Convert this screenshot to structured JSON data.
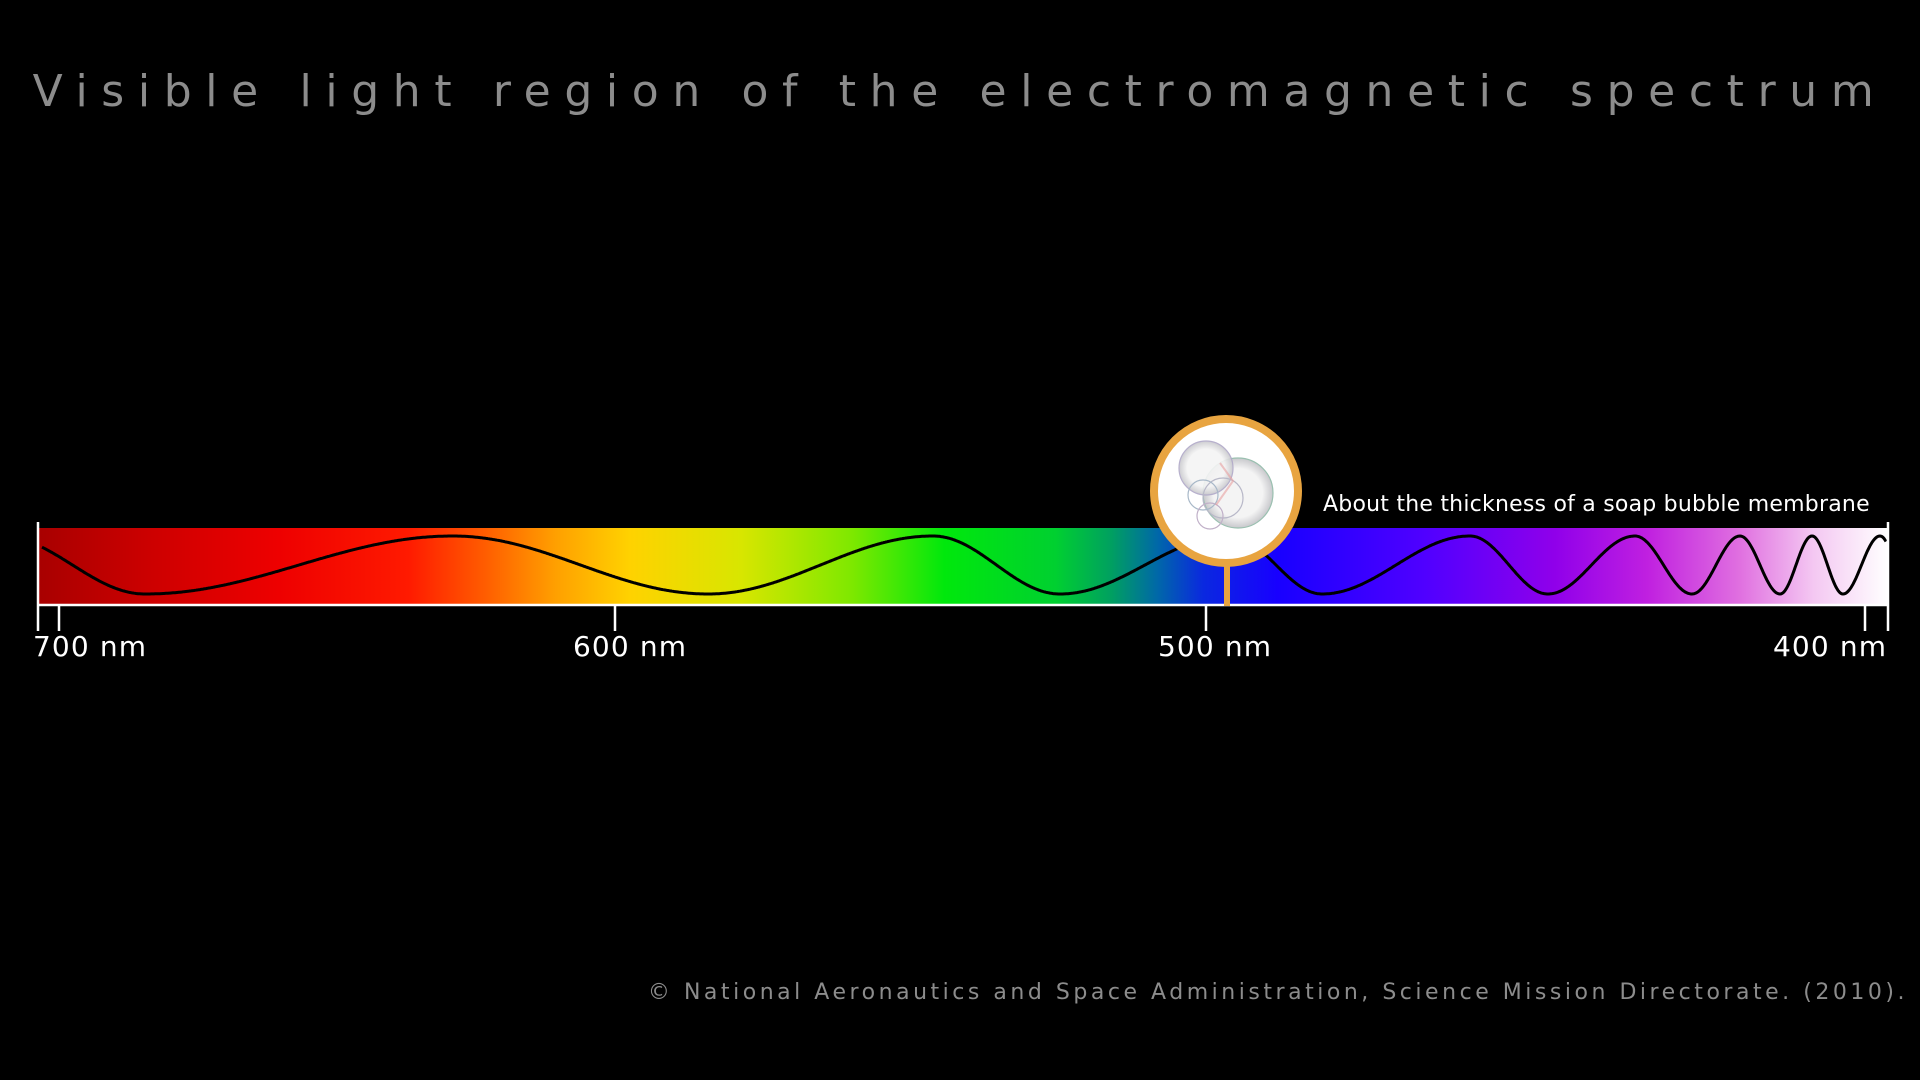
{
  "title": "Visible light region of the electromagnetic spectrum",
  "axis": {
    "ticks": [
      {
        "label": "700 nm",
        "value": 700
      },
      {
        "label": "600 nm",
        "value": 600
      },
      {
        "label": "500 nm",
        "value": 500
      },
      {
        "label": "400 nm",
        "value": 400
      }
    ]
  },
  "annotation": {
    "text": "About the thickness of a soap bubble membrane",
    "marker_icon": "soap-bubble-icon",
    "marker_color": "#e8a440"
  },
  "copyright": "© National Aeronautics and Space Administration, Science Mission Directorate. (2010).",
  "colors": {
    "background": "#000000",
    "title": "#8c8c8c",
    "wave": "#000000"
  }
}
